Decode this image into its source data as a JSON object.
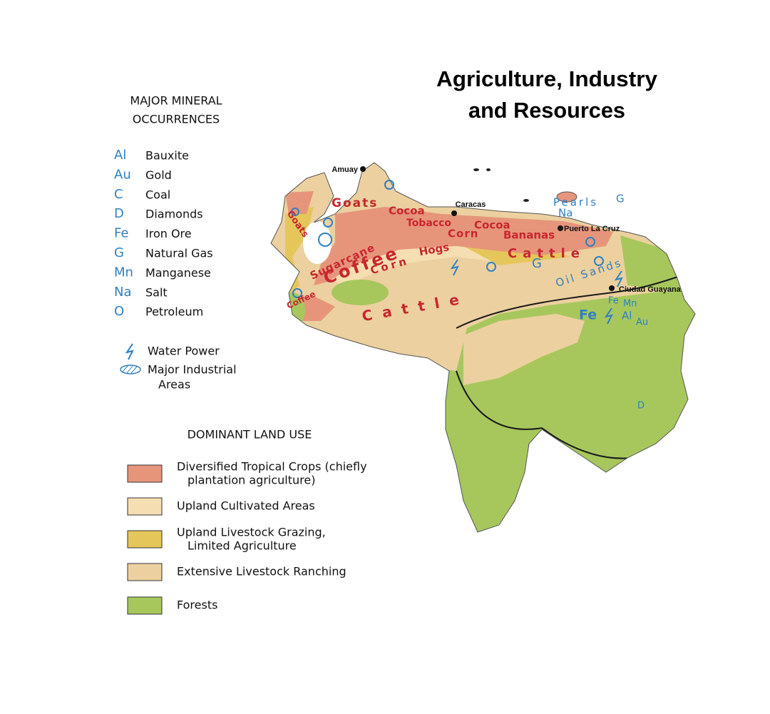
{
  "title": [
    "Agriculture, Industry",
    "and Resources"
  ],
  "minerals": {
    "heading": [
      "MAJOR MINERAL",
      "OCCURRENCES"
    ],
    "items": [
      {
        "symbol": "Al",
        "name": "Bauxite"
      },
      {
        "symbol": "Au",
        "name": "Gold"
      },
      {
        "symbol": "C",
        "name": "Coal"
      },
      {
        "symbol": "D",
        "name": "Diamonds"
      },
      {
        "symbol": "Fe",
        "name": "Iron Ore"
      },
      {
        "symbol": "G",
        "name": "Natural Gas"
      },
      {
        "symbol": "Mn",
        "name": "Manganese"
      },
      {
        "symbol": "Na",
        "name": "Salt"
      },
      {
        "symbol": "O",
        "name": "Petroleum"
      }
    ],
    "color": "#2f80c2"
  },
  "other_symbols": {
    "water_power": "Water Power",
    "industrial": [
      "Major Industrial",
      "Areas"
    ]
  },
  "land_use": {
    "heading": "DOMINANT LAND USE",
    "items": [
      {
        "label": [
          "Diversified Tropical Crops (chiefly",
          "plantation agriculture)"
        ],
        "color": "#e6957b"
      },
      {
        "label": [
          "Upland Cultivated Areas"
        ],
        "color": "#f5dfb2"
      },
      {
        "label": [
          "Upland Livestock Grazing,",
          "Limited Agriculture"
        ],
        "color": "#e5c65a"
      },
      {
        "label": [
          "Extensive Livestock Ranching"
        ],
        "color": "#ecd09f"
      },
      {
        "label": [
          "Forests"
        ],
        "color": "#a7c75d"
      }
    ]
  },
  "map": {
    "cities": [
      "Amuay",
      "Caracas",
      "Puerto La Cruz",
      "Ciudad Guayana"
    ],
    "products": [
      "Goats",
      "Goats",
      "Cocoa",
      "Tobacco",
      "Corn",
      "Cocoa",
      "Bananas",
      "Sugarcane",
      "Coffee",
      "Corn",
      "Hogs",
      "Cattle",
      "Coffee",
      "Cattle"
    ],
    "product_color": "#c8262f",
    "resources": [
      "Pearls",
      "G",
      "Na",
      "Oil Sands",
      "G",
      "Fe",
      "Mn",
      "Al",
      "Au",
      "Fe",
      "D"
    ]
  }
}
